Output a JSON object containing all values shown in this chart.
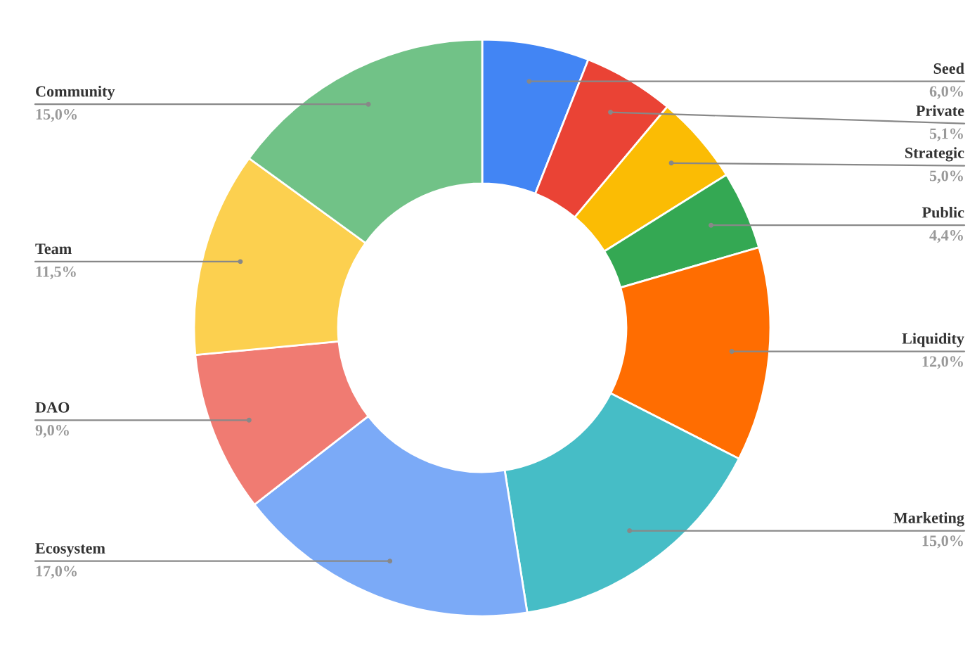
{
  "chart_data": {
    "type": "donut",
    "categories": [
      "Seed",
      "Private",
      "Strategic",
      "Public",
      "Liquidity",
      "Marketing",
      "Ecosystem",
      "DAO",
      "Team",
      "Community"
    ],
    "values": [
      6.0,
      5.1,
      5.0,
      4.4,
      12.0,
      15.0,
      17.0,
      9.0,
      11.5,
      15.0
    ],
    "value_labels": [
      "6,0%",
      "5,1%",
      "5,0%",
      "4,4%",
      "12,0%",
      "15,0%",
      "17,0%",
      "9,0%",
      "11,5%",
      "15,0%"
    ],
    "colors": [
      "#4285f4",
      "#ea4335",
      "#fbbc04",
      "#34a853",
      "#ff6d01",
      "#46bdc6",
      "#7baaf7",
      "#f07b72",
      "#fcd04f",
      "#71c287"
    ],
    "legend": false
  }
}
